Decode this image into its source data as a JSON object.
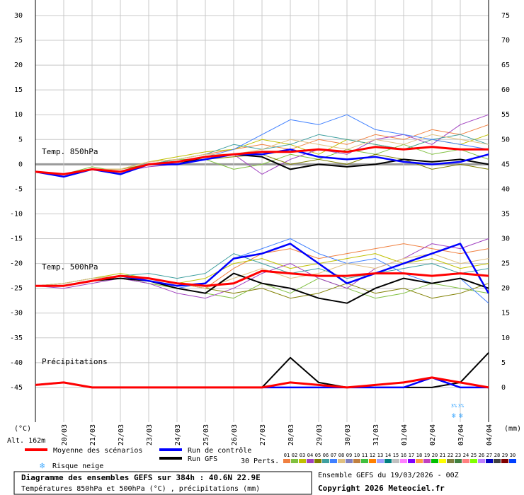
{
  "chart_data": {
    "type": "line",
    "categories": [
      null,
      "20/03",
      "21/03",
      "22/03",
      "23/03",
      "24/03",
      "25/03",
      "26/03",
      "27/03",
      "28/03",
      "29/03",
      "30/03",
      "31/03",
      "01/04",
      "02/04",
      "03/04",
      "04/04"
    ],
    "ylim": [
      -52,
      30
    ],
    "yticks": [
      30,
      25,
      20,
      15,
      10,
      5,
      0,
      -5,
      -10,
      -15,
      -20,
      -25,
      -30,
      -35,
      -40,
      -45
    ],
    "y2lim": [
      -7,
      75
    ],
    "y2ticks": [
      75,
      70,
      65,
      60,
      55,
      50,
      45,
      40,
      35,
      30,
      25,
      20,
      15,
      10,
      5,
      0
    ],
    "ylabel": "(°C)",
    "y2label": "(mm)",
    "altitude": "Alt. 162m",
    "grid": true,
    "panel_labels": {
      "t850": "Temp. 850hPa",
      "t500": "Temp. 500hPa",
      "precip": "Précipitations"
    },
    "series": [
      {
        "name": "Moyenne des scénarios",
        "color": "#ff0000",
        "t850": [
          -1.5,
          -2,
          -1,
          -1.5,
          0,
          0.5,
          1.5,
          2,
          2.5,
          2.5,
          3,
          2.5,
          3.5,
          3,
          3.5,
          3,
          3
        ],
        "t500": [
          -24.5,
          -24.5,
          -23.5,
          -22.5,
          -23,
          -24,
          -24.5,
          -24,
          -21.5,
          -22,
          -22.5,
          -22.5,
          -22,
          -22,
          -22.5,
          -22,
          -22.5
        ],
        "precip": [
          0.5,
          1,
          0,
          0,
          0,
          0,
          0,
          0,
          0,
          1,
          0.5,
          0,
          0.5,
          1,
          2,
          1,
          0
        ]
      },
      {
        "name": "Run de contrôle",
        "color": "#0000ff",
        "t850": [
          -1.5,
          -2.5,
          -1,
          -2,
          0,
          0,
          1,
          2,
          2,
          3,
          1.5,
          1,
          1.5,
          0.5,
          0,
          0.5,
          2
        ],
        "t500": [
          -24.5,
          -24.5,
          -23.5,
          -22.5,
          -23.5,
          -24.5,
          -24,
          -19,
          -18,
          -16,
          -20,
          -24,
          -22,
          -20,
          -18,
          -16,
          -26
        ],
        "precip": [
          0.5,
          1,
          0,
          0,
          0,
          0,
          0,
          0,
          0,
          0,
          0,
          0,
          0,
          0,
          2,
          0,
          0
        ]
      },
      {
        "name": "Run GFS",
        "color": "#000000",
        "t850": [
          -1.5,
          -2,
          -1,
          -1.5,
          0,
          0,
          1.5,
          2,
          1.5,
          -1,
          0,
          -0.5,
          0,
          1,
          0.5,
          1,
          0
        ],
        "t500": [
          -24.5,
          -24.5,
          -23.5,
          -23,
          -23.5,
          -25,
          -26,
          -22,
          -24,
          -25,
          -27,
          -28,
          -25,
          -23,
          -24,
          -23,
          -25
        ],
        "precip": [
          0.5,
          1,
          0,
          0,
          0,
          0,
          0,
          0,
          0,
          6,
          1,
          0,
          0,
          0,
          0,
          1,
          7
        ]
      }
    ],
    "snow_legend": "Risque neige",
    "snow_risk": [
      "3%",
      "3%"
    ],
    "perturbations_label": "30 Perts.",
    "perturbations": [
      {
        "name": "01",
        "color": "#f08040",
        "t850": [
          -1.5,
          -2,
          -1,
          -1,
          0.5,
          1,
          2,
          3,
          4,
          3,
          5,
          4,
          6,
          5,
          7,
          6,
          8
        ],
        "t500": [
          -24.5,
          -24,
          -23,
          -22.5,
          -23,
          -24,
          -25,
          -21,
          -18,
          -17,
          -19,
          -18,
          -17,
          -16,
          -17,
          -18,
          -17
        ]
      },
      {
        "name": "02",
        "color": "#80c040",
        "t850": [
          -1.5,
          -2,
          -0.5,
          -1.5,
          0,
          1,
          1,
          -1,
          0,
          2,
          1,
          3,
          2,
          4,
          2,
          3,
          1
        ],
        "t500": [
          -24.5,
          -24.5,
          -23.5,
          -23,
          -24,
          -25,
          -26,
          -27,
          -24,
          -26,
          -23,
          -25,
          -27,
          -26,
          -24,
          -25,
          -26
        ]
      },
      {
        "name": "03",
        "color": "#c0c000",
        "t850": [
          -1.5,
          -2.5,
          -1,
          -1,
          0.5,
          1.5,
          2.5,
          3,
          5,
          4,
          2,
          5,
          4,
          3,
          5,
          4,
          6
        ],
        "t500": [
          -24.5,
          -24,
          -23,
          -22,
          -23,
          -24,
          -23,
          -20,
          -19,
          -21,
          -20,
          -19,
          -18,
          -20,
          -19,
          -21,
          -20
        ]
      },
      {
        "name": "04",
        "color": "#a040c0",
        "t850": [
          -1.5,
          -2,
          -1,
          -1.5,
          -0.5,
          0,
          1,
          2,
          -2,
          1,
          3,
          2,
          5,
          6,
          4,
          8,
          10
        ],
        "t500": [
          -24.5,
          -25,
          -24,
          -23,
          -24,
          -26,
          -27,
          -25,
          -22,
          -20,
          -23,
          -25,
          -21,
          -19,
          -16,
          -17,
          -15
        ]
      },
      {
        "name": "05",
        "color": "#808000",
        "t850": [
          -1.5,
          -2,
          -1,
          -1,
          0,
          0.5,
          1,
          1.5,
          2,
          0,
          1,
          0,
          2,
          1,
          -1,
          0,
          -1
        ],
        "t500": [
          -24.5,
          -24.5,
          -23.5,
          -22.5,
          -23,
          -24,
          -25,
          -26,
          -25,
          -27,
          -26,
          -24,
          -26,
          -25,
          -27,
          -26,
          -24
        ]
      },
      {
        "name": "06",
        "color": "#40a0a0",
        "t850": [
          -1.5,
          -2,
          -1,
          -1.5,
          0,
          1,
          2,
          4,
          3,
          4,
          6,
          5,
          4,
          3,
          5,
          6,
          4
        ],
        "t500": [
          -24.5,
          -24,
          -23,
          -22.5,
          -22,
          -23,
          -22,
          -18,
          -20,
          -22,
          -21,
          -23,
          -22,
          -21,
          -20,
          -22,
          -21
        ]
      },
      {
        "name": "07",
        "color": "#4080ff",
        "t850": [
          -1.5,
          -2.5,
          -1,
          -2,
          0,
          0,
          1.5,
          3,
          6,
          9,
          8,
          10,
          7,
          6,
          5,
          4,
          3
        ],
        "t500": [
          -24.5,
          -24.5,
          -23.5,
          -23,
          -23.5,
          -25,
          -24,
          -19,
          -17,
          -15,
          -18,
          -20,
          -19,
          -22,
          -24,
          -23,
          -28
        ]
      },
      {
        "name": "08",
        "color": "#e0c080",
        "t850": [
          -1.5,
          -2,
          -1,
          -1,
          0.5,
          1,
          2,
          2,
          3,
          5,
          4,
          3,
          5,
          4,
          6,
          5,
          4
        ],
        "t500": [
          -24.5,
          -24,
          -23,
          -22.5,
          -23,
          -24,
          -25,
          -23,
          -21,
          -23,
          -22,
          -20,
          -21,
          -19,
          -18,
          -20,
          -19
        ]
      },
      {
        "name": "09",
        "color": "#8080c0"
      },
      {
        "name": "10",
        "color": "#c08040"
      },
      {
        "name": "11",
        "color": "#40c040"
      },
      {
        "name": "12",
        "color": "#ff8000"
      },
      {
        "name": "13",
        "color": "#a0a0ff"
      },
      {
        "name": "14",
        "color": "#008080"
      },
      {
        "name": "15",
        "color": "#c0c0c0"
      },
      {
        "name": "16",
        "color": "#ff80ff"
      },
      {
        "name": "17",
        "color": "#8000ff"
      },
      {
        "name": "18",
        "color": "#ffa040"
      },
      {
        "name": "19",
        "color": "#c040c0"
      },
      {
        "name": "20",
        "color": "#00c000"
      },
      {
        "name": "21",
        "color": "#ffff00"
      },
      {
        "name": "22",
        "color": "#808040"
      },
      {
        "name": "23",
        "color": "#408040"
      },
      {
        "name": "24",
        "color": "#ff8080"
      },
      {
        "name": "25",
        "color": "#80ff00"
      },
      {
        "name": "26",
        "color": "#c080ff"
      },
      {
        "name": "27",
        "color": "#0000c0"
      },
      {
        "name": "28",
        "color": "#404040"
      },
      {
        "name": "29",
        "color": "#800000"
      },
      {
        "name": "30",
        "color": "#0040ff"
      }
    ],
    "footer": {
      "title": "Diagramme des ensembles GEFS sur 384h : 40.6N 22.9E",
      "subtitle": "Températures 850hPa et 500hPa (°C) , précipitations (mm)",
      "run": "Ensemble GEFS du 19/03/2026 - 00Z",
      "copyright": "Copyright 2026 Meteociel.fr"
    }
  }
}
